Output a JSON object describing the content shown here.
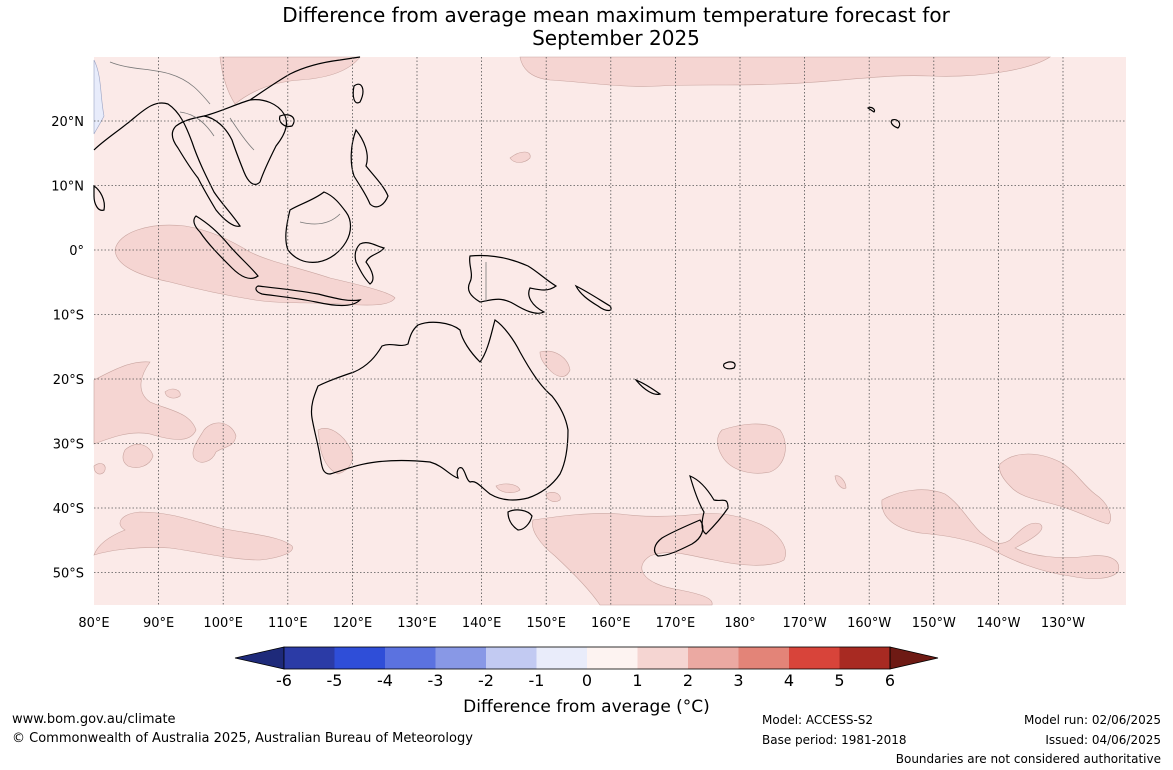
{
  "title": {
    "line1": "Difference from average mean maximum temperature forecast for",
    "line2": "September 2025"
  },
  "map": {
    "lon_labels": [
      "80°E",
      "90°E",
      "100°E",
      "110°E",
      "120°E",
      "130°E",
      "140°E",
      "150°E",
      "160°E",
      "170°E",
      "180°",
      "170°W",
      "160°W",
      "150°W",
      "140°W",
      "130°W"
    ],
    "lat_labels": [
      "20°N",
      "10°N",
      "0°",
      "10°S",
      "20°S",
      "30°S",
      "40°S",
      "50°S"
    ],
    "background_color": "#fbeae8",
    "anomaly_1_2_color": "#f5d5d2",
    "negative_color": "#e8ecfb",
    "coastline_color": "#000000",
    "gridline_style": "dotted"
  },
  "colorbar": {
    "ticks": [
      "-6",
      "-5",
      "-4",
      "-3",
      "-2",
      "-1",
      "0",
      "1",
      "2",
      "3",
      "4",
      "5",
      "6"
    ],
    "colors": [
      "#1e2a7a",
      "#2b3ba6",
      "#2f4ed8",
      "#5b72e0",
      "#8898e6",
      "#c2caf2",
      "#e9ecfa",
      "#fdf3f1",
      "#f5d5d2",
      "#eba9a2",
      "#e38478",
      "#d8443a",
      "#a82a22",
      "#6e1a14"
    ],
    "label": "Difference from average (°C)"
  },
  "footer": {
    "website": "www.bom.gov.au/climate",
    "copyright": "© Commonwealth of Australia 2025, Australian Bureau of Meteorology",
    "model": "Model: ACCESS-S2",
    "base_period": "Base period: 1981-2018",
    "model_run": "Model run: 02/06/2025",
    "issued": "Issued: 04/06/2025",
    "boundaries_note": "Boundaries are not considered authoritative"
  }
}
